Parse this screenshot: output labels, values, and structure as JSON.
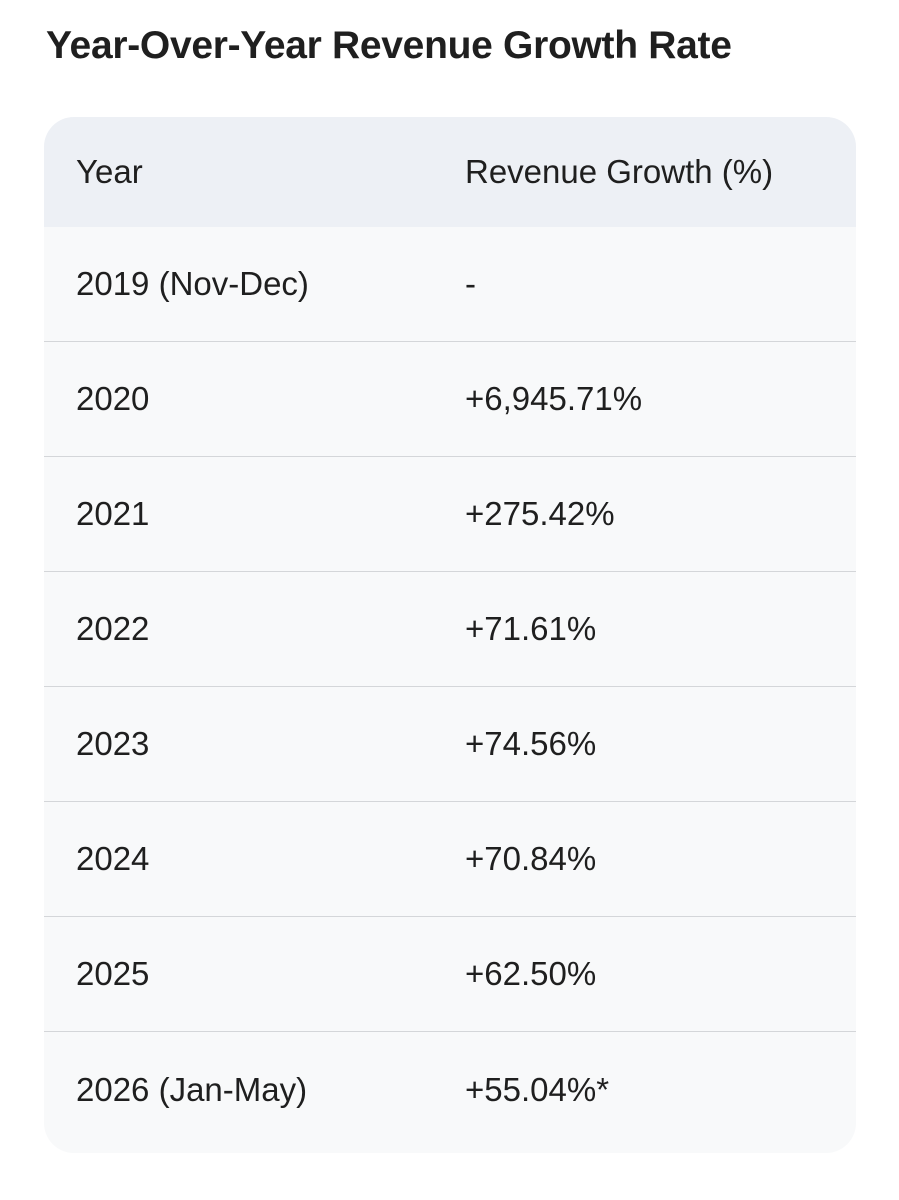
{
  "title": "Year-Over-Year Revenue Growth Rate",
  "table": {
    "headers": [
      "Year",
      "Revenue Growth (%)"
    ],
    "rows": [
      {
        "year": "2019 (Nov-Dec)",
        "growth": "-"
      },
      {
        "year": "2020",
        "growth": "+6,945.71%"
      },
      {
        "year": "2021",
        "growth": "+275.42%"
      },
      {
        "year": "2022",
        "growth": "+71.61%"
      },
      {
        "year": "2023",
        "growth": "+74.56%"
      },
      {
        "year": "2024",
        "growth": "+70.84%"
      },
      {
        "year": "2025",
        "growth": "+62.50%"
      },
      {
        "year": "2026 (Jan-May)",
        "growth": "+55.04%*"
      }
    ]
  }
}
